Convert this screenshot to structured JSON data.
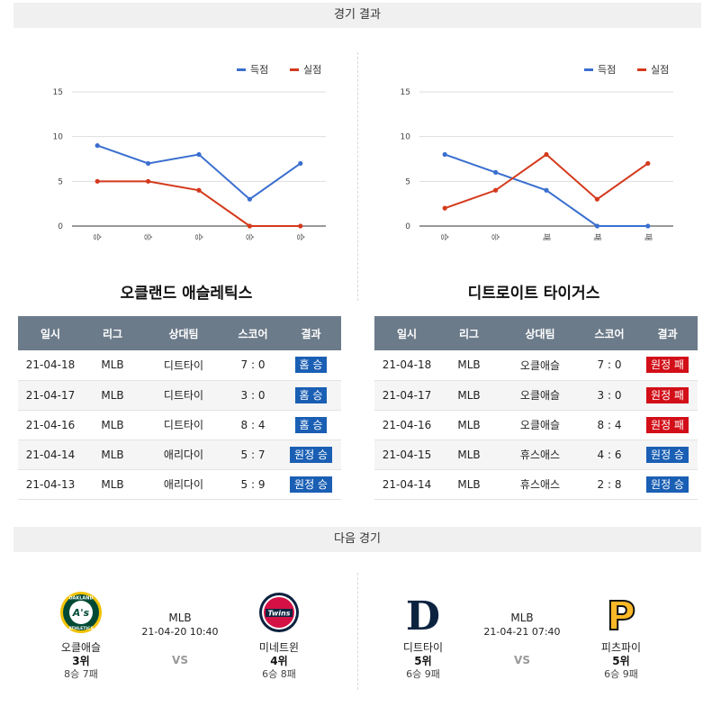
{
  "sections": {
    "results_title": "경기 결과",
    "next_title": "다음 경기"
  },
  "legend": {
    "scored": "득점",
    "allowed": "실점"
  },
  "colors": {
    "scored": "#3a6fcf",
    "allowed": "#d4391c",
    "win_badge": "#1a5fb4",
    "loss_badge": "#d20f18",
    "header": "#6c7b8a"
  },
  "chart_data": [
    {
      "type": "line",
      "categories": [
        "승",
        "승",
        "승",
        "승",
        "승"
      ],
      "series": [
        {
          "name": "득점",
          "values": [
            9,
            7,
            8,
            3,
            7
          ]
        },
        {
          "name": "실점",
          "values": [
            5,
            5,
            4,
            0,
            0
          ]
        }
      ],
      "yticks": [
        0,
        5,
        10,
        15
      ],
      "ylim": [
        0,
        15
      ],
      "legend": "top-right",
      "grid": true
    },
    {
      "type": "line",
      "categories": [
        "승",
        "승",
        "패",
        "패",
        "패"
      ],
      "series": [
        {
          "name": "득점",
          "values": [
            8,
            6,
            4,
            0,
            0
          ]
        },
        {
          "name": "실점",
          "values": [
            2,
            4,
            8,
            3,
            7
          ]
        }
      ],
      "yticks": [
        0,
        5,
        10,
        15
      ],
      "ylim": [
        0,
        15
      ],
      "legend": "top-right",
      "grid": true
    }
  ],
  "teams": {
    "left_title": "오클랜드 애슬레틱스",
    "right_title": "디트로이트 타이거스"
  },
  "table_headers": [
    "일시",
    "리그",
    "상대팀",
    "스코어",
    "결과"
  ],
  "left_results": [
    {
      "date": "21-04-18",
      "league": "MLB",
      "opponent": "디트타이",
      "score": "7 : 0",
      "result": "홈 승",
      "win": true
    },
    {
      "date": "21-04-17",
      "league": "MLB",
      "opponent": "디트타이",
      "score": "3 : 0",
      "result": "홈 승",
      "win": true
    },
    {
      "date": "21-04-16",
      "league": "MLB",
      "opponent": "디트타이",
      "score": "8 : 4",
      "result": "홈 승",
      "win": true
    },
    {
      "date": "21-04-14",
      "league": "MLB",
      "opponent": "애리다이",
      "score": "5 : 7",
      "result": "원정 승",
      "win": true
    },
    {
      "date": "21-04-13",
      "league": "MLB",
      "opponent": "애리다이",
      "score": "5 : 9",
      "result": "원정 승",
      "win": true
    }
  ],
  "right_results": [
    {
      "date": "21-04-18",
      "league": "MLB",
      "opponent": "오클애슬",
      "score": "7 : 0",
      "result": "원정 패",
      "win": false
    },
    {
      "date": "21-04-17",
      "league": "MLB",
      "opponent": "오클애슬",
      "score": "3 : 0",
      "result": "원정 패",
      "win": false
    },
    {
      "date": "21-04-16",
      "league": "MLB",
      "opponent": "오클애슬",
      "score": "8 : 4",
      "result": "원정 패",
      "win": false
    },
    {
      "date": "21-04-15",
      "league": "MLB",
      "opponent": "휴스애스",
      "score": "4 : 6",
      "result": "원정 승",
      "win": true
    },
    {
      "date": "21-04-14",
      "league": "MLB",
      "opponent": "휴스애스",
      "score": "2 : 8",
      "result": "원정 승",
      "win": true
    }
  ],
  "next_games": [
    {
      "league": "MLB",
      "time": "21-04-20 10:40",
      "vs": "VS",
      "home": {
        "name": "오클애슬",
        "rank": "3위",
        "record": "8승 7패",
        "logo": "athletics-logo"
      },
      "away": {
        "name": "미네트윈",
        "rank": "4위",
        "record": "6승 8패",
        "logo": "twins-logo"
      }
    },
    {
      "league": "MLB",
      "time": "21-04-21 07:40",
      "vs": "VS",
      "home": {
        "name": "디트타이",
        "rank": "5위",
        "record": "6승 9패",
        "logo": "tigers-logo"
      },
      "away": {
        "name": "피츠파이",
        "rank": "5위",
        "record": "6승 9패",
        "logo": "pirates-logo"
      }
    }
  ],
  "logo_text": {
    "athletics_arc": "OAKLAND",
    "athletics_arc2": "ATHLETICS",
    "athletics_mark": "A's",
    "twins_word": "Twins",
    "tigers_mark": "D",
    "pirates_mark": "P"
  }
}
